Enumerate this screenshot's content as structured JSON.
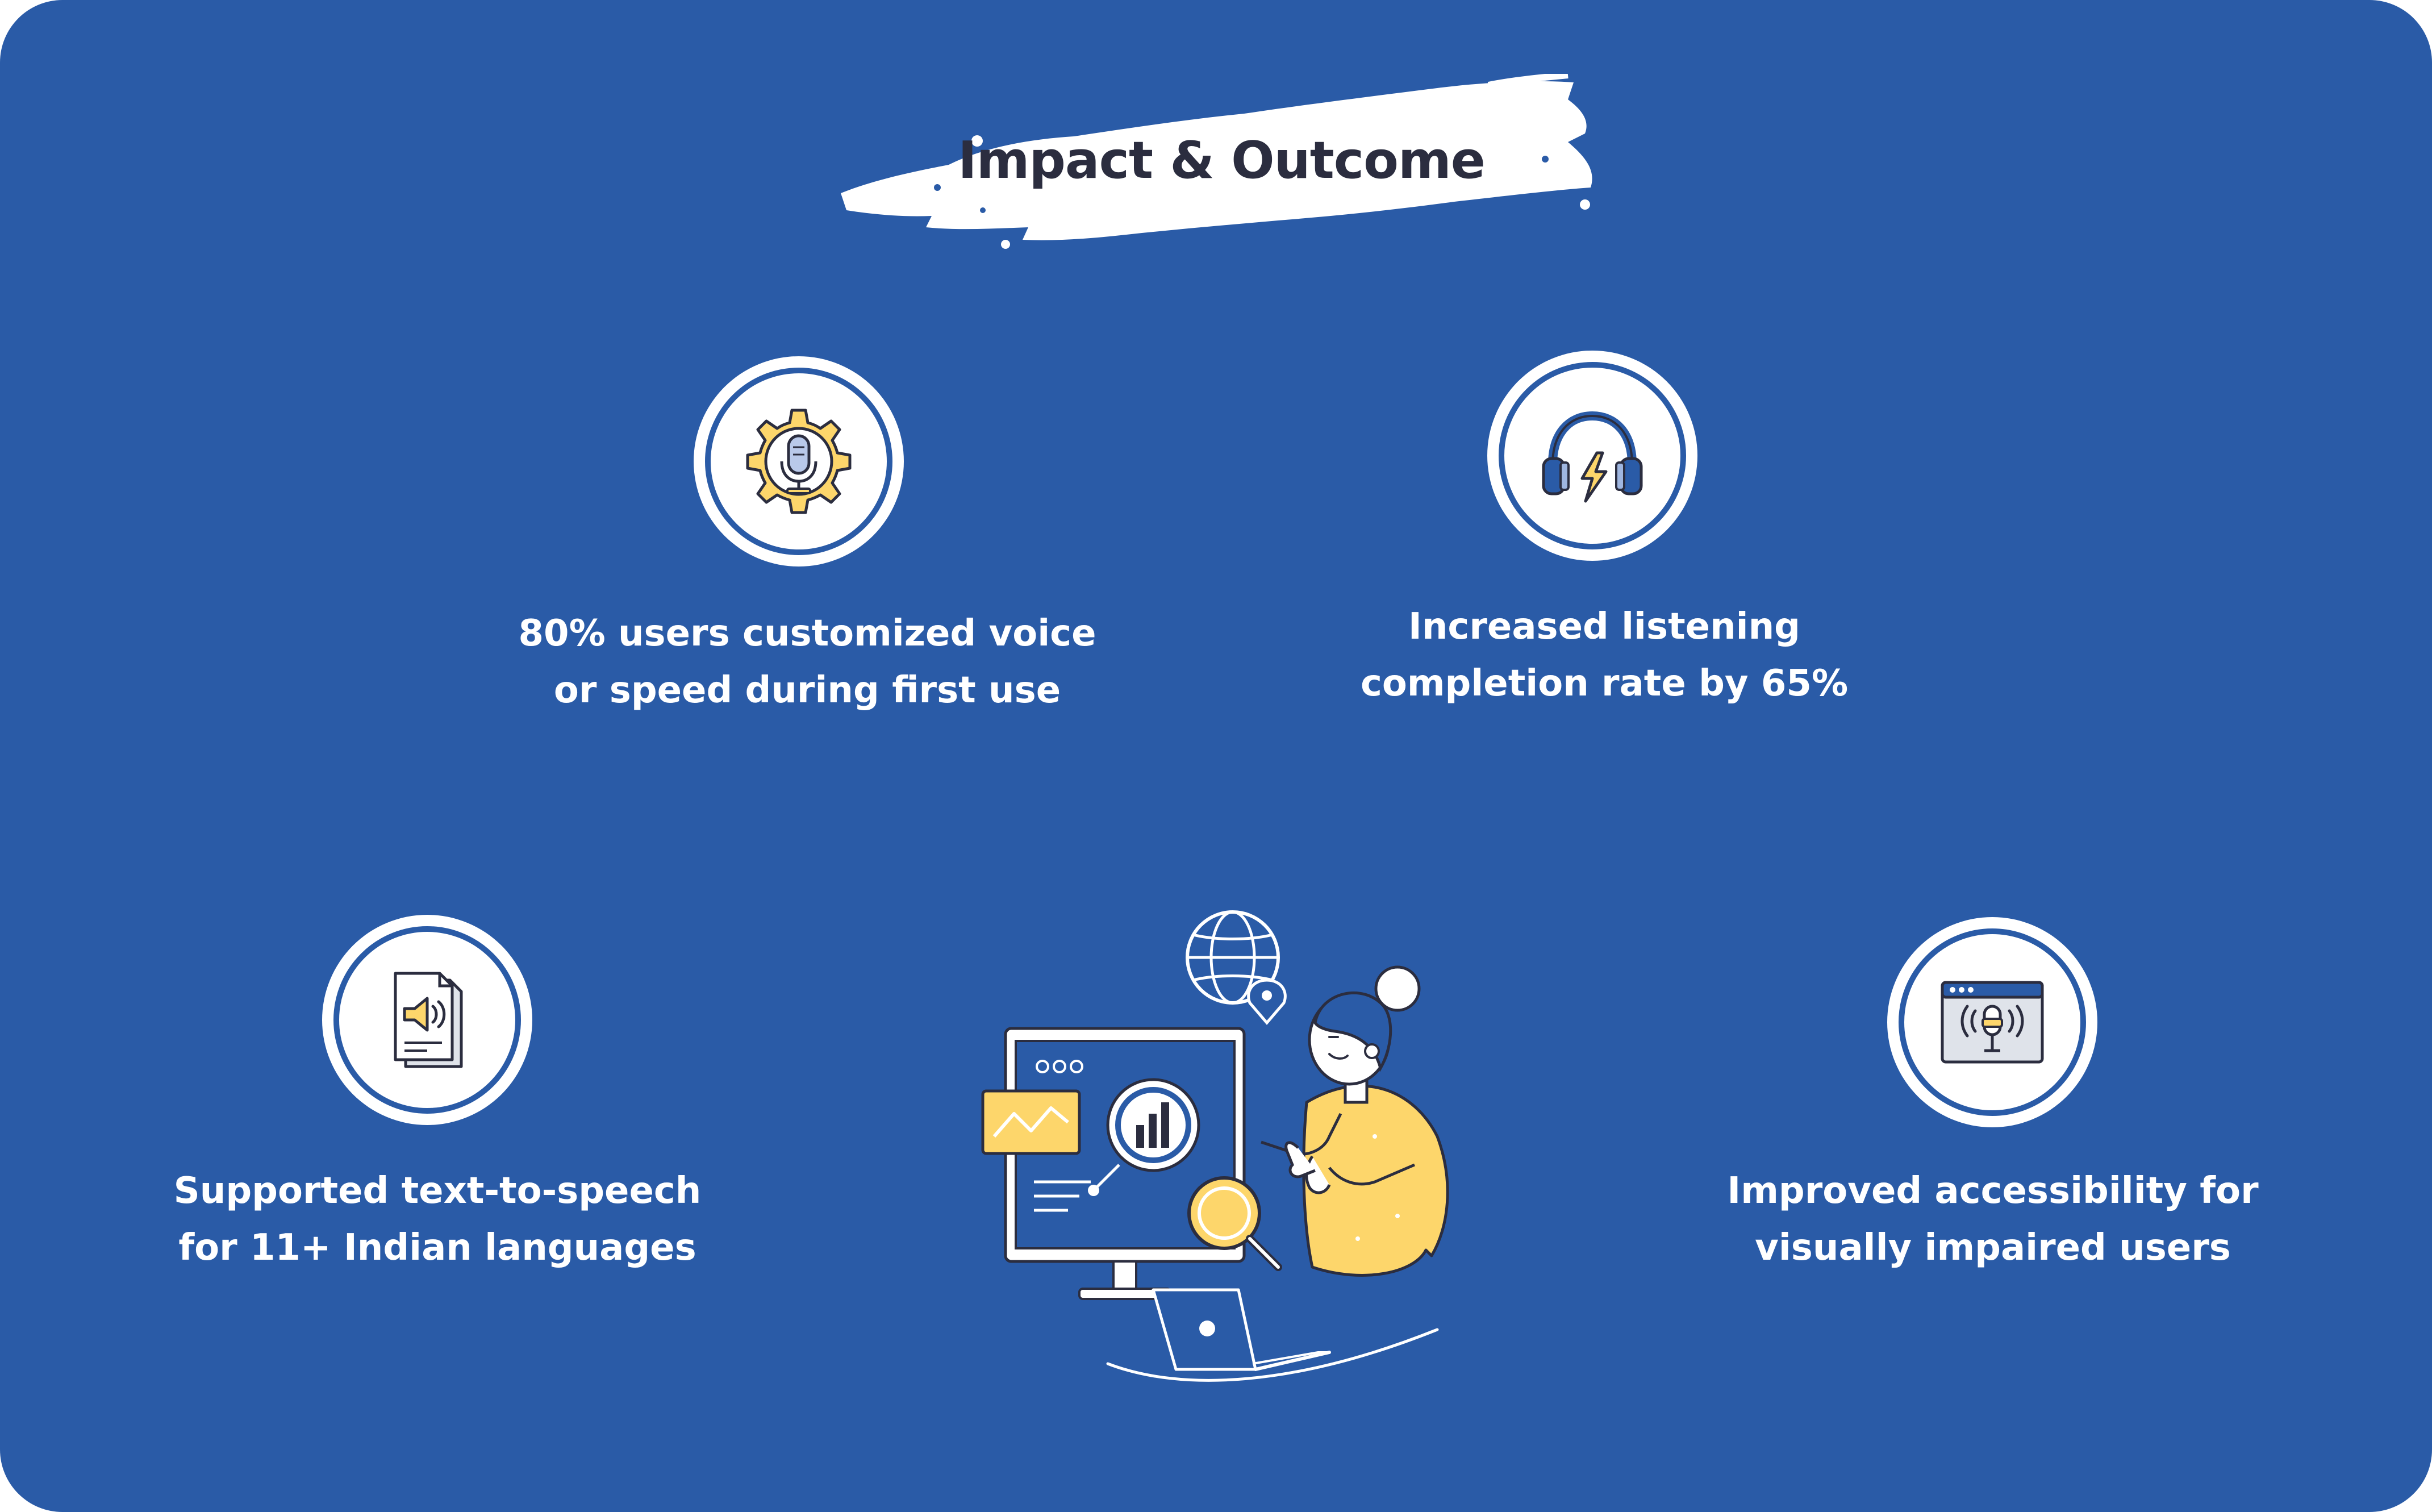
{
  "title": "Impact & Outcome",
  "colors": {
    "background": "#2a5ba7",
    "accent_yellow": "#fdd66b",
    "text_dark": "#2b2d3f"
  },
  "items": [
    {
      "icon": "gear-microphone-icon",
      "lines": [
        "80% users customized voice",
        "or speed during first use"
      ]
    },
    {
      "icon": "headphones-lightning-icon",
      "lines": [
        "Increased listening",
        "completion rate by 65%"
      ]
    },
    {
      "icon": "document-speaker-icon",
      "lines": [
        "Supported text-to-speech",
        "for 11+ Indian languages"
      ]
    },
    {
      "icon": "browser-microphone-icon",
      "lines": [
        "Improved accessibility for",
        "visually impaired users"
      ]
    }
  ],
  "illustration": {
    "icon": "woman-analytics-dashboard-illustration"
  }
}
